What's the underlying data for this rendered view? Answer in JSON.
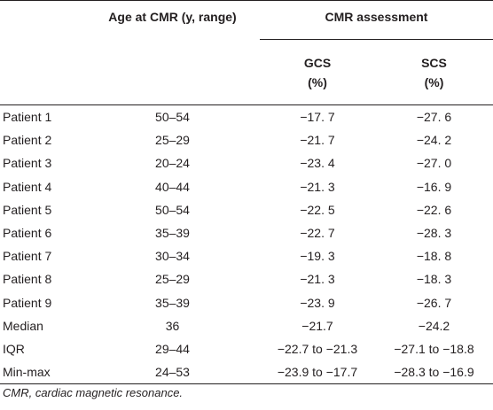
{
  "table": {
    "header": {
      "age_col": "Age at CMR (y, range)",
      "cmr_group": "CMR assessment",
      "gcs": [
        "GCS",
        "(%)"
      ],
      "scs": [
        "SCS",
        "(%)"
      ]
    },
    "rows": [
      {
        "label": "Patient 1",
        "age": "50–54",
        "gcs": "−17. 7",
        "scs": "−27. 6"
      },
      {
        "label": "Patient 2",
        "age": "25–29",
        "gcs": "−21. 7",
        "scs": "−24. 2"
      },
      {
        "label": "Patient 3",
        "age": "20–24",
        "gcs": "−23. 4",
        "scs": "−27. 0"
      },
      {
        "label": "Patient 4",
        "age": "40–44",
        "gcs": "−21. 3",
        "scs": "−16. 9"
      },
      {
        "label": "Patient 5",
        "age": "50–54",
        "gcs": "−22. 5",
        "scs": "−22. 6"
      },
      {
        "label": "Patient 6",
        "age": "35–39",
        "gcs": "−22. 7",
        "scs": "−28. 3"
      },
      {
        "label": "Patient 7",
        "age": "30–34",
        "gcs": "−19. 3",
        "scs": "−18. 8"
      },
      {
        "label": "Patient 8",
        "age": "25–29",
        "gcs": "−21. 3",
        "scs": "−18. 3"
      },
      {
        "label": "Patient 9",
        "age": "35–39",
        "gcs": "−23. 9",
        "scs": "−26. 7"
      },
      {
        "label": "Median",
        "age": "36",
        "gcs": "−21.7",
        "scs": "−24.2"
      },
      {
        "label": "IQR",
        "age": "29–44",
        "gcs": "−22.7 to −21.3",
        "scs": "−27.1 to −18.8"
      },
      {
        "label": "Min-max",
        "age": "24–53",
        "gcs": "−23.9 to −17.7",
        "scs": "−28.3 to −16.9"
      }
    ]
  },
  "footnote": "CMR, cardiac magnetic resonance."
}
